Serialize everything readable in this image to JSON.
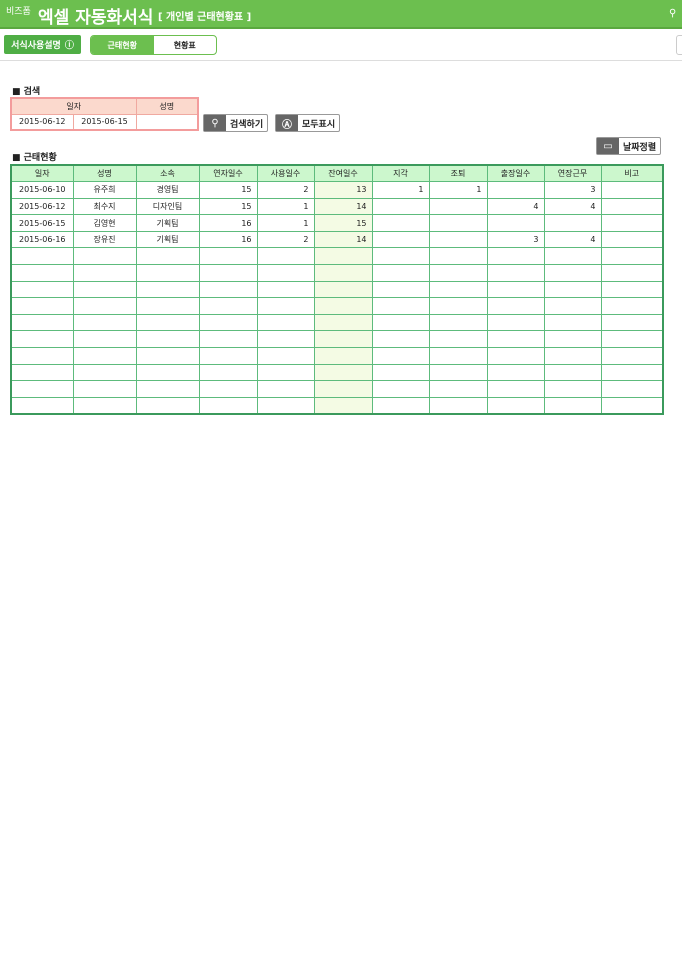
{
  "header": {
    "brand": "비즈폼",
    "title": "엑셀 자동화서식",
    "subtitle": "[ 개인별 근태현황표 ]"
  },
  "nav": {
    "guide_label": "서식사용설명",
    "tabs": [
      {
        "label": "근태현황",
        "active": true
      },
      {
        "label": "현황표",
        "active": false
      }
    ]
  },
  "search": {
    "section_title": "■ 검색",
    "headers": [
      "일자",
      "성명"
    ],
    "date_from": "2015-06-12",
    "date_to": "2015-06-15",
    "name": "",
    "search_button": "검색하기",
    "show_all_button": "모두표시"
  },
  "attendance": {
    "section_title": "■ 근태현황",
    "sort_button": "날짜정렬",
    "columns": [
      "일자",
      "성명",
      "소속",
      "연자일수",
      "사용일수",
      "잔여일수",
      "지각",
      "조퇴",
      "출장일수",
      "연장근무",
      "비고"
    ],
    "rows": [
      [
        "2015-06-10",
        "유주희",
        "경영팀",
        "15",
        "2",
        "13",
        "1",
        "1",
        "",
        "3",
        ""
      ],
      [
        "2015-06-12",
        "최수지",
        "디자인팀",
        "15",
        "1",
        "14",
        "",
        "",
        "4",
        "4",
        ""
      ],
      [
        "2015-06-15",
        "김영현",
        "기획팀",
        "16",
        "1",
        "15",
        "",
        "",
        "",
        "",
        ""
      ],
      [
        "2015-06-16",
        "장유진",
        "기획팀",
        "16",
        "2",
        "14",
        "",
        "",
        "3",
        "4",
        ""
      ]
    ]
  },
  "colors": {
    "accent": "#6cbf4f",
    "header_green": "#ccf7cd",
    "search_header": "#fbd9cd"
  }
}
